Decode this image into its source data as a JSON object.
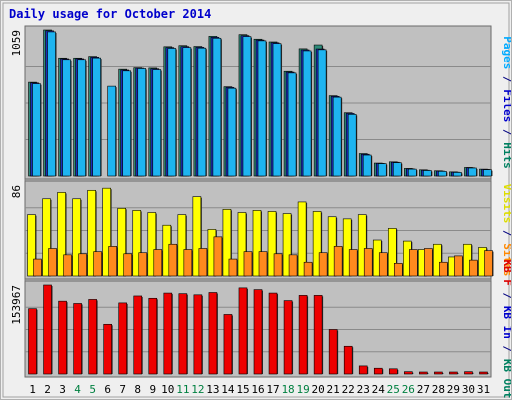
{
  "chart_data": {
    "type": "bar",
    "title": "Daily usage for October 2014",
    "categories": [
      "1",
      "2",
      "3",
      "4",
      "5",
      "6",
      "7",
      "8",
      "9",
      "10",
      "11",
      "12",
      "13",
      "14",
      "15",
      "16",
      "17",
      "18",
      "19",
      "20",
      "21",
      "22",
      "23",
      "24",
      "25",
      "26",
      "27",
      "28",
      "29",
      "30",
      "31"
    ],
    "weekend_days": [
      "4",
      "5",
      "11",
      "12",
      "18",
      "19",
      "25",
      "26"
    ],
    "panels": [
      {
        "id": "top",
        "ymax_label": "1059",
        "ymax": 1059,
        "side_labels": [
          {
            "text": "Pages",
            "color": "#00aaff"
          },
          {
            "text": " / ",
            "color": "#000080"
          },
          {
            "text": "Files",
            "color": "#0000cc"
          },
          {
            "text": " / ",
            "color": "#000080"
          },
          {
            "text": "Hits",
            "color": "#008060"
          }
        ],
        "series": [
          {
            "name": "Hits",
            "color": "#2e8b7a",
            "values": [
              681,
              1059,
              854,
              854,
              866,
              0,
              775,
              786,
              784,
              937,
              945,
              939,
              1013,
              648,
              1025,
              992,
              972,
              760,
              922,
              950,
              583,
              459,
              163,
              94,
              103,
              55,
              45,
              38,
              30,
              62,
              50
            ]
          },
          {
            "name": "Files",
            "color": "#1b2db8",
            "values": [
              676,
              1053,
              849,
              849,
              861,
              0,
              769,
              783,
              778,
              931,
              938,
              933,
              1006,
              643,
              1018,
              986,
              966,
              754,
              914,
              921,
              578,
              454,
              158,
              92,
              100,
              52,
              42,
              36,
              28,
              60,
              48
            ]
          },
          {
            "name": "Pages",
            "color": "#1eb4f0",
            "values": [
              670,
              1045,
              843,
              843,
              855,
              652,
              763,
              780,
              772,
              925,
              931,
              927,
              999,
              637,
              1011,
              980,
              960,
              748,
              907,
              915,
              572,
              447,
              152,
              90,
              97,
              50,
              40,
              34,
              26,
              58,
              46
            ]
          }
        ]
      },
      {
        "id": "middle",
        "ymax_label": "86",
        "ymax": 86,
        "side_labels": [
          {
            "text": "Visits",
            "color": "#dddd00"
          },
          {
            "text": " / ",
            "color": "#000080"
          },
          {
            "text": "Sites",
            "color": "#ff8800"
          }
        ],
        "series": [
          {
            "name": "Visits",
            "color": "#ffff00",
            "values": [
              58,
              73,
              79,
              73,
              81,
              83,
              64,
              62,
              60,
              48,
              58,
              75,
              44,
              63,
              60,
              62,
              61,
              59,
              70,
              61,
              56,
              54,
              58,
              34,
              45,
              33,
              25,
              30,
              18,
              30,
              27
            ]
          },
          {
            "name": "Sites",
            "color": "#ff8a1e",
            "values": [
              16,
              26,
              20,
              21,
              23,
              28,
              21,
              22,
              25,
              30,
              25,
              26,
              37,
              16,
              23,
              23,
              21,
              20,
              13,
              22,
              28,
              25,
              26,
              22,
              12,
              25,
              26,
              13,
              19,
              15,
              24
            ]
          }
        ]
      },
      {
        "id": "bottom",
        "ymax_label": "153967",
        "ymax": 153967,
        "side_labels": [
          {
            "text": "KB F",
            "color": "#dd0000"
          },
          {
            "text": " / ",
            "color": "#000080"
          },
          {
            "text": "KB In",
            "color": "#0000cc"
          },
          {
            "text": " / ",
            "color": "#000080"
          },
          {
            "text": "KB Out",
            "color": "#008060"
          }
        ],
        "series": [
          {
            "name": "KB F",
            "color": "#ee0000",
            "values": [
              113000,
              153967,
              126000,
              122000,
              129000,
              86000,
              123000,
              135000,
              131000,
              140000,
              139000,
              137000,
              141000,
              103000,
              149000,
              146000,
              140000,
              127000,
              136000,
              136000,
              77000,
              48000,
              14000,
              10000,
              9000,
              4000,
              3000,
              3000,
              2000,
              4000,
              3000
            ]
          }
        ]
      }
    ]
  }
}
